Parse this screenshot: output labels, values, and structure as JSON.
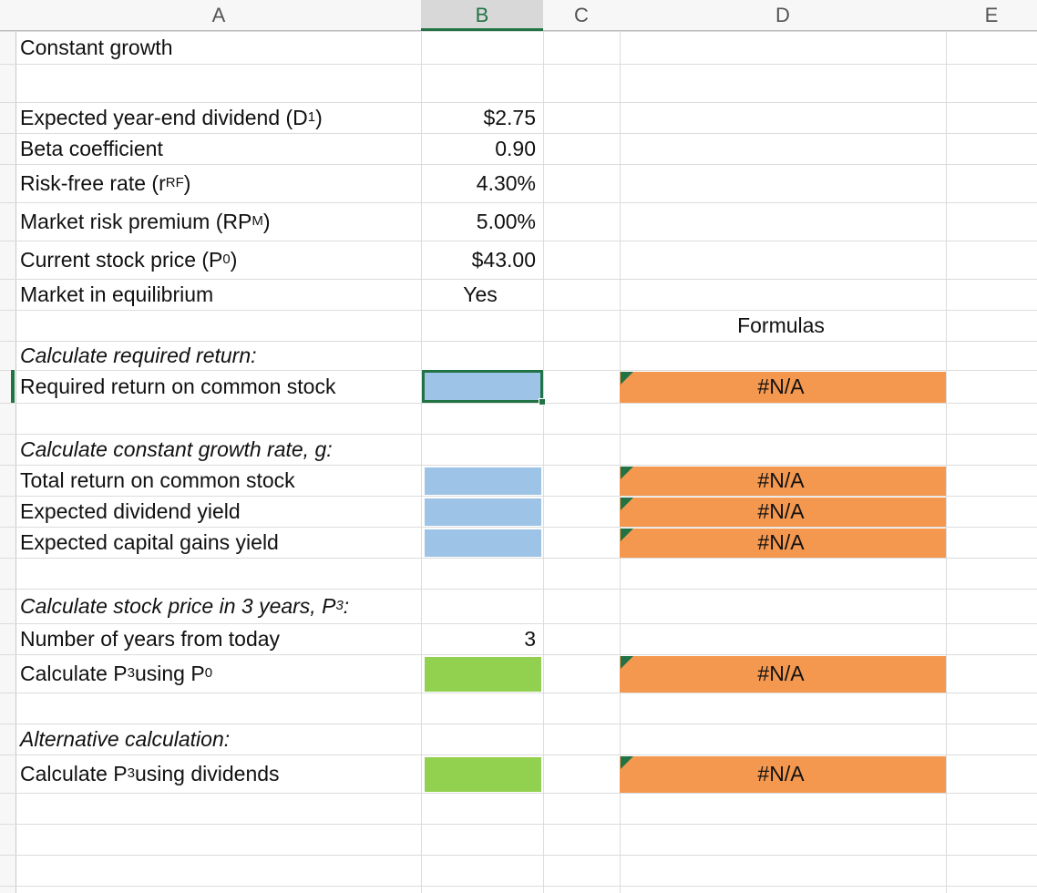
{
  "column_headers": [
    "A",
    "B",
    "C",
    "D",
    "E"
  ],
  "title": "Constant growth",
  "inputs": [
    {
      "label": [
        "Expected year-end dividend (D",
        "1",
        ")"
      ],
      "value": "$2.75"
    },
    {
      "label": [
        "Beta coefficient"
      ],
      "value": "0.90"
    },
    {
      "label": [
        "Risk-free rate (r",
        "RF",
        ")"
      ],
      "value": "4.30%"
    },
    {
      "label": [
        "Market risk premium (RP",
        "M",
        ")"
      ],
      "value": "5.00%"
    },
    {
      "label": [
        "Current stock price (P",
        "0",
        ")"
      ],
      "value": "$43.00"
    },
    {
      "label": [
        "Market in equilibrium"
      ],
      "value": "Yes"
    }
  ],
  "formulas_header": "Formulas",
  "sections": [
    {
      "heading": [
        "Calculate required return:"
      ],
      "rows": [
        {
          "label": [
            "Required return on common stock"
          ],
          "formula": "#N/A"
        }
      ]
    },
    {
      "heading": [
        "Calculate constant growth rate, g:"
      ],
      "rows": [
        {
          "label": [
            "Total return on common stock"
          ],
          "formula": "#N/A"
        },
        {
          "label": [
            "Expected dividend yield"
          ],
          "formula": "#N/A"
        },
        {
          "label": [
            "Expected capital gains yield"
          ],
          "formula": "#N/A"
        }
      ]
    },
    {
      "heading": [
        "Calculate stock price in 3 years, P",
        "3",
        ":"
      ],
      "rows": [
        {
          "label": [
            "Number of years from today"
          ],
          "value": 3
        },
        {
          "label": [
            "Calculate P",
            "3",
            " using P",
            "0"
          ],
          "formula": "#N/A"
        }
      ]
    },
    {
      "heading": [
        "Alternative calculation:"
      ],
      "rows": [
        {
          "label": [
            "Calculate P",
            "3",
            " using dividends"
          ],
          "formula": "#N/A"
        }
      ]
    }
  ]
}
